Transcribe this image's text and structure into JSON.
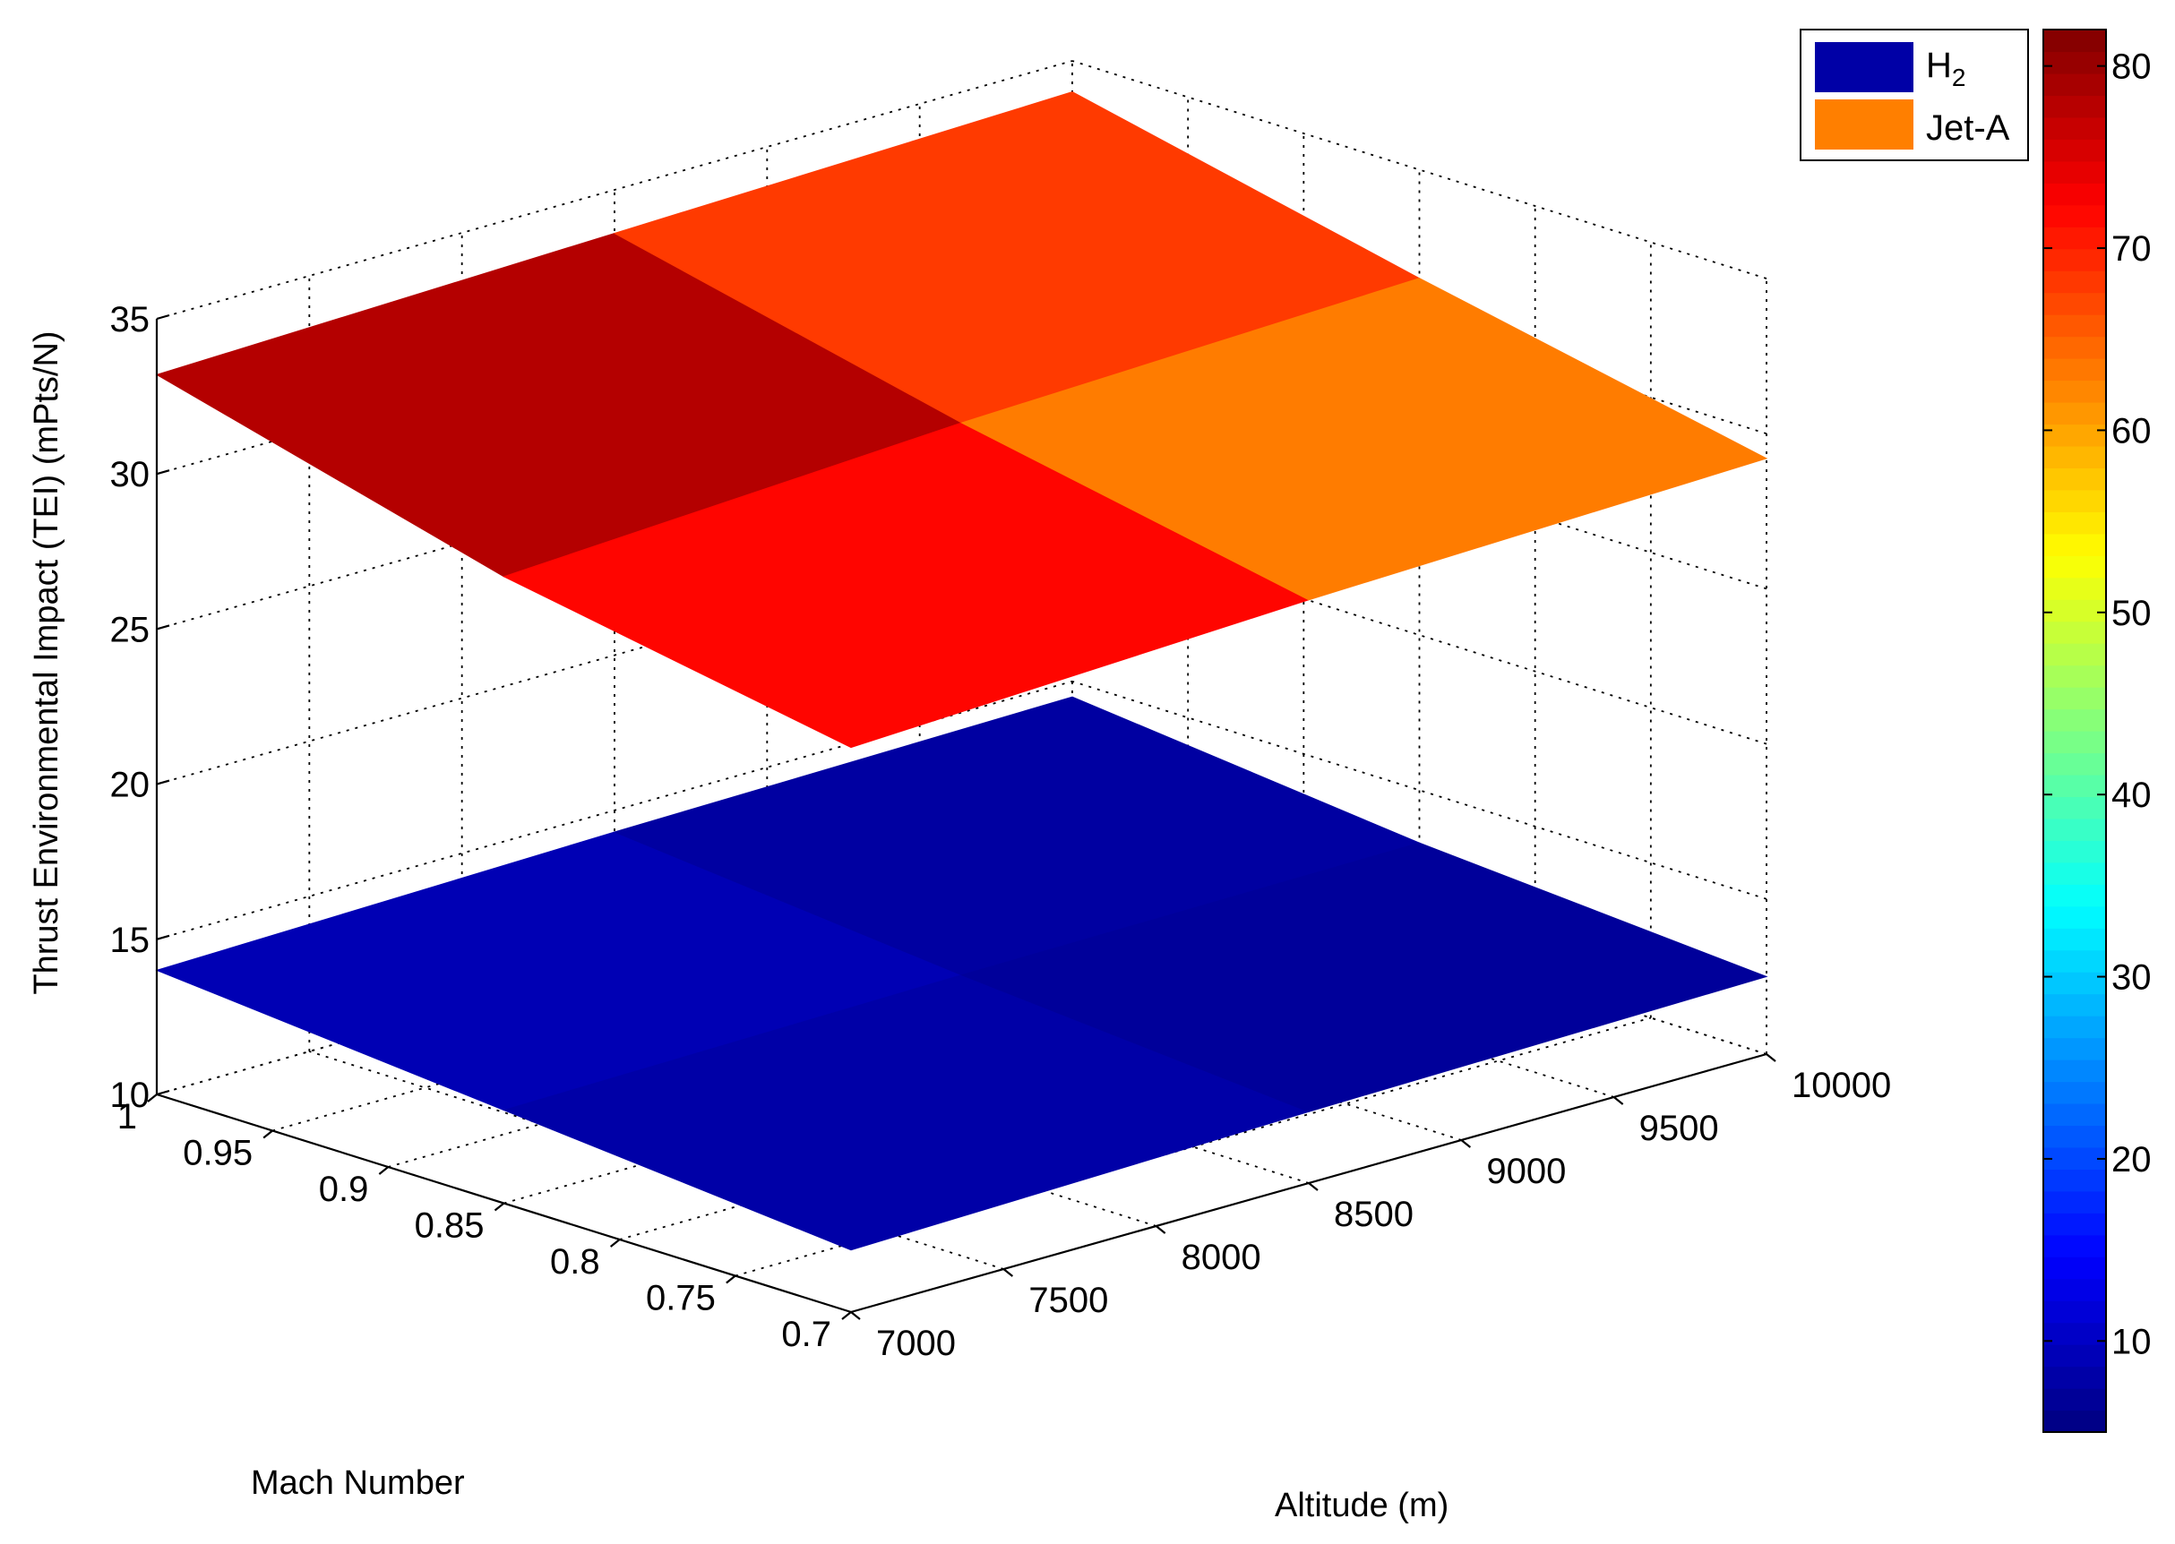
{
  "chart_data": {
    "type": "surface3d",
    "title": "",
    "xlabel": "Mach Number",
    "ylabel": "Altitude (m)",
    "zlabel": "Thrust Environmental Impact (TEI) (mPts/N)",
    "xlim": [
      0.7,
      1
    ],
    "ylim": [
      7000,
      10000
    ],
    "zlim": [
      10,
      35
    ],
    "x_ticks": [
      "0.7",
      "0.75",
      "0.8",
      "0.85",
      "0.9",
      "0.95",
      "1"
    ],
    "y_ticks": [
      "7000",
      "7500",
      "8000",
      "8500",
      "9000",
      "9500",
      "10000"
    ],
    "z_ticks": [
      "10",
      "15",
      "20",
      "25",
      "30",
      "35"
    ],
    "mach_grid": [
      1.0,
      0.85,
      0.7
    ],
    "altitude_grid": [
      7000,
      8500,
      10000
    ],
    "grid": true,
    "legend_position": "top-right",
    "legend": [
      {
        "label_main": "H",
        "label_sub": "2",
        "color": "#0000A6"
      },
      {
        "label_main": "Jet-A",
        "label_sub": "",
        "color": "#FF7F00"
      }
    ],
    "colorbar": {
      "colormap": "jet",
      "range": [
        5,
        82
      ],
      "ticks": [
        "10",
        "20",
        "30",
        "40",
        "50",
        "60",
        "70",
        "80"
      ]
    },
    "series": [
      {
        "name": "Jet-A",
        "z": [
          [
            33.2,
            33.6,
            34.0
          ],
          [
            30.2,
            31.0,
            31.5
          ],
          [
            28.2,
            28.8,
            29.2
          ]
        ],
        "c": [
          [
            78,
            68,
            60
          ],
          [
            72,
            63,
            56
          ],
          [
            68,
            60,
            54
          ]
        ]
      },
      {
        "name": "H2",
        "z": [
          [
            14.0,
            14.3,
            14.5
          ],
          [
            13.0,
            13.2,
            13.3
          ],
          [
            12.0,
            12.3,
            12.5
          ]
        ],
        "c": [
          [
            9,
            7.5,
            6.5
          ],
          [
            8,
            7,
            6
          ],
          [
            7.5,
            6.5,
            5.5
          ]
        ]
      }
    ]
  }
}
